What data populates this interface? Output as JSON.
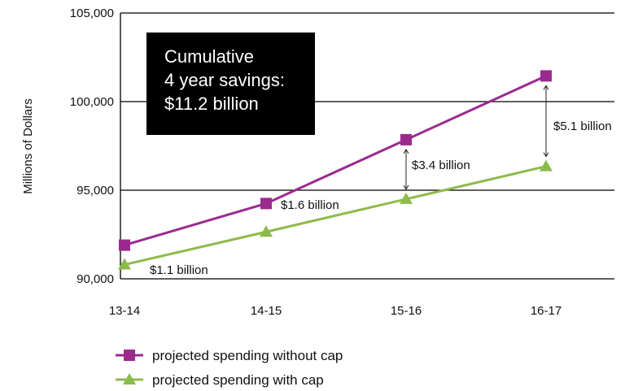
{
  "chart_data": {
    "type": "line",
    "categories": [
      "13-14",
      "14-15",
      "15-16",
      "16-17"
    ],
    "ylabel": "Millions of Dollars",
    "ylim": [
      90000,
      105000
    ],
    "yticks": [
      90000,
      95000,
      100000,
      105000
    ],
    "ytick_labels": [
      "90,000",
      "95,000",
      "100,000",
      "105,000"
    ],
    "grid": true,
    "legend_position": "bottom",
    "series": [
      {
        "name": "projected spending without cap",
        "values": [
          91900,
          94250,
          97850,
          101450
        ],
        "color": "#9b2a8f",
        "marker": "square"
      },
      {
        "name": "projected spending with cap",
        "values": [
          90800,
          92650,
          94500,
          96350
        ],
        "color": "#8dbb4a",
        "marker": "triangle"
      }
    ],
    "annotations": [
      {
        "category_index": 0,
        "label": "$1.1 billion",
        "arrow": false
      },
      {
        "category_index": 1,
        "label": "$1.6 billion",
        "arrow": false
      },
      {
        "category_index": 2,
        "label": "$3.4 billion",
        "arrow": true
      },
      {
        "category_index": 3,
        "label": "$5.1 billion",
        "arrow": true
      }
    ],
    "callout": {
      "lines": [
        "Cumulative",
        "4 year savings:",
        "$11.2 billion"
      ],
      "background": "#000000",
      "text_color": "#ffffff"
    }
  }
}
